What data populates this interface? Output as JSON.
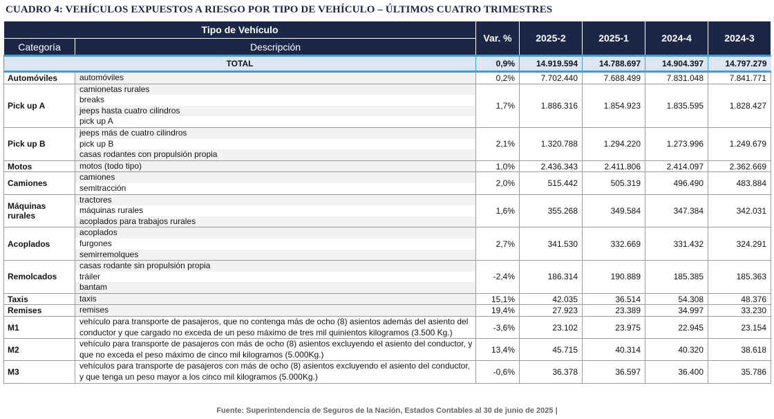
{
  "title": "CUADRO 4: VEHÍCULOS EXPUESTOS A RIESGO POR TIPO DE VEHÍCULO – ÚLTIMOS CUATRO TRIMESTRES",
  "header": {
    "group": "Tipo de Vehículo",
    "categoria": "Categoría",
    "descripcion": "Descripción",
    "var": "Var. %",
    "periods": [
      "2025-2",
      "2025-1",
      "2024-4",
      "2024-3"
    ]
  },
  "total": {
    "label": "TOTAL",
    "var": "0,9%",
    "values": [
      "14.919.594",
      "14.788.697",
      "14.904.397",
      "14.797.279"
    ]
  },
  "rows": [
    {
      "category": "Automóviles",
      "desc": [
        "automóviles"
      ],
      "var": "0,2%",
      "values": [
        "7.702.440",
        "7.688.499",
        "7.831.048",
        "7.841.771"
      ]
    },
    {
      "category": "Pick up A",
      "desc": [
        "camionetas rurales",
        "breaks",
        "jeeps hasta cuatro cilindros",
        "pick up A"
      ],
      "var": "1,7%",
      "values": [
        "1.886.316",
        "1.854.923",
        "1.835.595",
        "1.828.427"
      ]
    },
    {
      "category": "Pick up B",
      "desc": [
        "jeeps más de cuatro cilindros",
        "pick up B",
        "casas rodantes con propulsión propia"
      ],
      "var": "2,1%",
      "values": [
        "1.320.788",
        "1.294.220",
        "1.273.996",
        "1.249.679"
      ]
    },
    {
      "category": "Motos",
      "desc": [
        "motos (todo tipo)"
      ],
      "var": "1,0%",
      "values": [
        "2.436.343",
        "2.411.806",
        "2.414.097",
        "2.362.669"
      ]
    },
    {
      "category": "Camiones",
      "desc": [
        "camiones",
        "semitracción"
      ],
      "var": "2,0%",
      "values": [
        "515.442",
        "505.319",
        "496.490",
        "483.884"
      ]
    },
    {
      "category": "Máquinas rurales",
      "desc": [
        "tractores",
        "máquinas rurales",
        "acoplados para trabajos rurales"
      ],
      "var": "1,6%",
      "values": [
        "355.268",
        "349.584",
        "347.384",
        "342.031"
      ]
    },
    {
      "category": "Acoplados",
      "desc": [
        "acoplados",
        "furgones",
        "semirremolques"
      ],
      "var": "2,7%",
      "values": [
        "341.530",
        "332.669",
        "331.432",
        "324.291"
      ]
    },
    {
      "category": "Remolcados",
      "desc": [
        "casas rodante sin propulsión propia",
        "tráiler",
        "bantam"
      ],
      "var": "-2,4%",
      "values": [
        "186.314",
        "190.889",
        "185.385",
        "185.363"
      ]
    },
    {
      "category": "Taxis",
      "desc": [
        "taxis"
      ],
      "var": "15,1%",
      "values": [
        "42.035",
        "36.514",
        "54.308",
        "48.376"
      ]
    },
    {
      "category": "Remises",
      "desc": [
        "remises"
      ],
      "var": "19,4%",
      "values": [
        "27.923",
        "23.389",
        "34.997",
        "33.230"
      ]
    },
    {
      "category": "M1",
      "descText": "vehículo para transporte de pasajeros, que no contenga más de ocho (8) asientos además del asiento del conductor y que cargado no exceda de un peso máximo de tres mil quinientos kilogramos (3.500 Kg.)",
      "var": "-3,6%",
      "values": [
        "23.102",
        "23.975",
        "22.945",
        "23.154"
      ]
    },
    {
      "category": "M2",
      "descText": "vehículo para transporte de pasajeros con más de ocho (8) asientos excluyendo el asiento del conductor, y que no exceda el peso máximo de cinco mil kilogramos (5.000Kg.)",
      "var": "13,4%",
      "values": [
        "45.715",
        "40.314",
        "40.320",
        "38.618"
      ]
    },
    {
      "category": "M3",
      "descText": "vehículos para transporte de pasajeros con más de ocho (8) asientos excluyendo el asiento del conductor, y que tenga un peso mayor a los cinco mil kilogramos (5.000Kg.)",
      "var": "-0,6%",
      "values": [
        "36.378",
        "36.597",
        "36.400",
        "35.786"
      ]
    }
  ],
  "source": "Fuente: Superintendencia de Seguros de la Nación, Estados Contables al 30 de junio de 2025 |"
}
